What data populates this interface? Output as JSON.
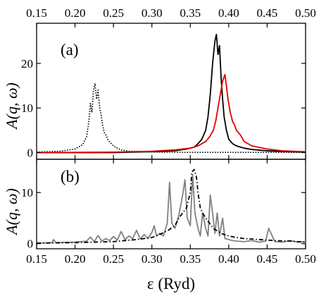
{
  "chart_data": [
    {
      "type": "line",
      "panel_label": "(a)",
      "ylabel": "A(q, ω)",
      "xlim": [
        0.15,
        0.5
      ],
      "ylim": [
        -1.5,
        29
      ],
      "x_ticks": [
        "0.15",
        "0.20",
        "0.25",
        "0.30",
        "0.35",
        "0.40",
        "0.45",
        "0.50"
      ],
      "y_ticks": [
        "0",
        "10",
        "20"
      ],
      "series": [
        {
          "style": "dotted",
          "color": "#000000",
          "x": [
            0.15,
            0.18,
            0.2,
            0.21,
            0.215,
            0.218,
            0.22,
            0.222,
            0.224,
            0.226,
            0.228,
            0.23,
            0.232,
            0.234,
            0.236,
            0.238,
            0.24,
            0.243,
            0.246,
            0.25,
            0.255,
            0.26,
            0.27,
            0.29,
            0.31,
            0.35,
            0.4,
            0.45,
            0.5
          ],
          "y": [
            0.1,
            0.3,
            0.8,
            1.8,
            3.5,
            7,
            11,
            9,
            14,
            15.5,
            12,
            14,
            10,
            8.5,
            6,
            4.5,
            4,
            2.8,
            2.2,
            1.5,
            1.0,
            0.6,
            0.3,
            0.2,
            0.1,
            0.05,
            0.05,
            0.05,
            0.05
          ]
        },
        {
          "style": "solid",
          "color": "#000000",
          "x": [
            0.15,
            0.25,
            0.3,
            0.33,
            0.345,
            0.355,
            0.36,
            0.365,
            0.37,
            0.373,
            0.376,
            0.379,
            0.382,
            0.384,
            0.386,
            0.388,
            0.39,
            0.392,
            0.394,
            0.397,
            0.4,
            0.405,
            0.41,
            0.42,
            0.43,
            0.45,
            0.48,
            0.5
          ],
          "y": [
            0,
            0,
            0.2,
            0.4,
            0.8,
            1.2,
            2,
            3,
            5,
            8,
            13,
            20,
            25,
            26.5,
            22,
            24,
            17,
            12,
            8,
            5,
            3,
            2,
            1.5,
            1,
            0.7,
            0.4,
            0.2,
            0.1
          ],
          "note": "peak near 0.385"
        },
        {
          "style": "solid",
          "color": "#e00000",
          "x": [
            0.15,
            0.25,
            0.3,
            0.33,
            0.35,
            0.36,
            0.37,
            0.375,
            0.38,
            0.383,
            0.386,
            0.389,
            0.392,
            0.395,
            0.397,
            0.399,
            0.402,
            0.405,
            0.408,
            0.41,
            0.415,
            0.42,
            0.43,
            0.45,
            0.47,
            0.5
          ],
          "y": [
            0,
            0.1,
            0.3,
            0.6,
            1,
            1.5,
            2.5,
            3.5,
            5,
            7,
            10,
            13,
            16,
            17.5,
            15,
            12,
            9,
            7,
            6,
            5,
            4,
            2.5,
            1.5,
            0.8,
            0.4,
            0.2
          ]
        }
      ]
    },
    {
      "type": "line",
      "panel_label": "(b)",
      "xlabel": "ε (Ryd)",
      "ylabel": "A(q, ω)",
      "xlim": [
        0.15,
        0.5
      ],
      "ylim": [
        -1,
        16.5
      ],
      "x_ticks": [
        "0.15",
        "0.20",
        "0.25",
        "0.30",
        "0.35",
        "0.40",
        "0.45",
        "0.50"
      ],
      "y_ticks": [
        "0",
        "10"
      ],
      "series": [
        {
          "style": "solid",
          "color": "#808080",
          "x": [
            0.15,
            0.17,
            0.172,
            0.175,
            0.2,
            0.215,
            0.22,
            0.225,
            0.23,
            0.235,
            0.24,
            0.245,
            0.25,
            0.255,
            0.26,
            0.265,
            0.27,
            0.275,
            0.28,
            0.285,
            0.29,
            0.295,
            0.3,
            0.303,
            0.306,
            0.31,
            0.315,
            0.32,
            0.323,
            0.326,
            0.33,
            0.335,
            0.34,
            0.343,
            0.346,
            0.35,
            0.353,
            0.356,
            0.36,
            0.363,
            0.366,
            0.37,
            0.373,
            0.376,
            0.379,
            0.382,
            0.385,
            0.388,
            0.392,
            0.395,
            0.4,
            0.405,
            0.41,
            0.42,
            0.43,
            0.44,
            0.448,
            0.452,
            0.46,
            0.47,
            0.48,
            0.49,
            0.5
          ],
          "y": [
            0.1,
            0.2,
            0.8,
            0.2,
            0.3,
            0.5,
            1.3,
            0.4,
            1.6,
            0.5,
            1.0,
            0.6,
            1.4,
            0.7,
            2.4,
            0.8,
            1.5,
            1.0,
            2.6,
            0.9,
            1.8,
            1.0,
            2.2,
            3.5,
            1.5,
            2.0,
            1.5,
            4.0,
            12,
            4.0,
            3.0,
            5.5,
            9.5,
            12.5,
            5.0,
            3.5,
            13.5,
            6.0,
            3.0,
            1.5,
            6.0,
            3.0,
            1.5,
            9.5,
            6.0,
            2.0,
            6.0,
            1.5,
            5.0,
            1.0,
            0.8,
            0.6,
            0.5,
            0.4,
            0.6,
            0.3,
            0.5,
            3.0,
            0.4,
            0.3,
            0.6,
            0.3,
            0.4
          ]
        },
        {
          "style": "dashdot",
          "color": "#000000",
          "x": [
            0.15,
            0.2,
            0.25,
            0.28,
            0.3,
            0.31,
            0.32,
            0.33,
            0.335,
            0.34,
            0.345,
            0.35,
            0.352,
            0.355,
            0.358,
            0.36,
            0.363,
            0.366,
            0.37,
            0.375,
            0.38,
            0.385,
            0.39,
            0.4,
            0.41,
            0.42,
            0.44,
            0.46,
            0.48,
            0.5
          ],
          "y": [
            0.1,
            0.2,
            0.4,
            0.8,
            1.2,
            1.8,
            2.5,
            3.5,
            5,
            6,
            7,
            10,
            14,
            14.5,
            13,
            10,
            7,
            6,
            5,
            4,
            3,
            2.5,
            2,
            1.5,
            1.2,
            1,
            0.8,
            0.6,
            0.5,
            0.3
          ]
        }
      ]
    }
  ]
}
